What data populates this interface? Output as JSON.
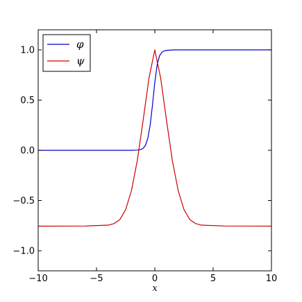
{
  "chart_data": {
    "type": "line",
    "title": "",
    "xlabel": "x",
    "ylabel": "",
    "xlim": [
      -10,
      10
    ],
    "ylim": [
      -1.2,
      1.2
    ],
    "x_ticks": [
      -10,
      -5,
      0,
      5,
      10
    ],
    "x_tick_labels": [
      "−10",
      "−5",
      "0",
      "5",
      "10"
    ],
    "y_ticks": [
      -1.0,
      -0.5,
      0.0,
      0.5,
      1.0
    ],
    "y_tick_labels": [
      "−1.0",
      "−0.5",
      "0.0",
      "0.5",
      "1.0"
    ],
    "grid": false,
    "legend_position": "top-left",
    "series": [
      {
        "name": "φ",
        "color": "#0000cc",
        "x": [
          -10,
          -6,
          -3,
          -2,
          -1.5,
          -1.2,
          -1.0,
          -0.8,
          -0.6,
          -0.4,
          -0.2,
          0,
          0.2,
          0.4,
          0.6,
          0.8,
          1.0,
          1.5,
          2,
          3,
          6,
          10
        ],
        "y": [
          0,
          0,
          0,
          0,
          0.002,
          0.008,
          0.02,
          0.05,
          0.12,
          0.25,
          0.45,
          0.68,
          0.85,
          0.94,
          0.975,
          0.99,
          0.995,
          0.999,
          1.0,
          1.0,
          1.0,
          1.0
        ]
      },
      {
        "name": "ψ",
        "color": "#cc0000",
        "x": [
          -10,
          -6,
          -4,
          -3.5,
          -3,
          -2.5,
          -2,
          -1.5,
          -1,
          -0.5,
          0,
          0.5,
          1,
          1.5,
          2,
          2.5,
          3,
          3.5,
          4,
          6,
          10
        ],
        "y": [
          -0.755,
          -0.754,
          -0.745,
          -0.73,
          -0.69,
          -0.59,
          -0.4,
          -0.1,
          0.3,
          0.72,
          1.0,
          0.72,
          0.3,
          -0.1,
          -0.4,
          -0.59,
          -0.69,
          -0.73,
          -0.745,
          -0.754,
          -0.755
        ]
      }
    ]
  }
}
